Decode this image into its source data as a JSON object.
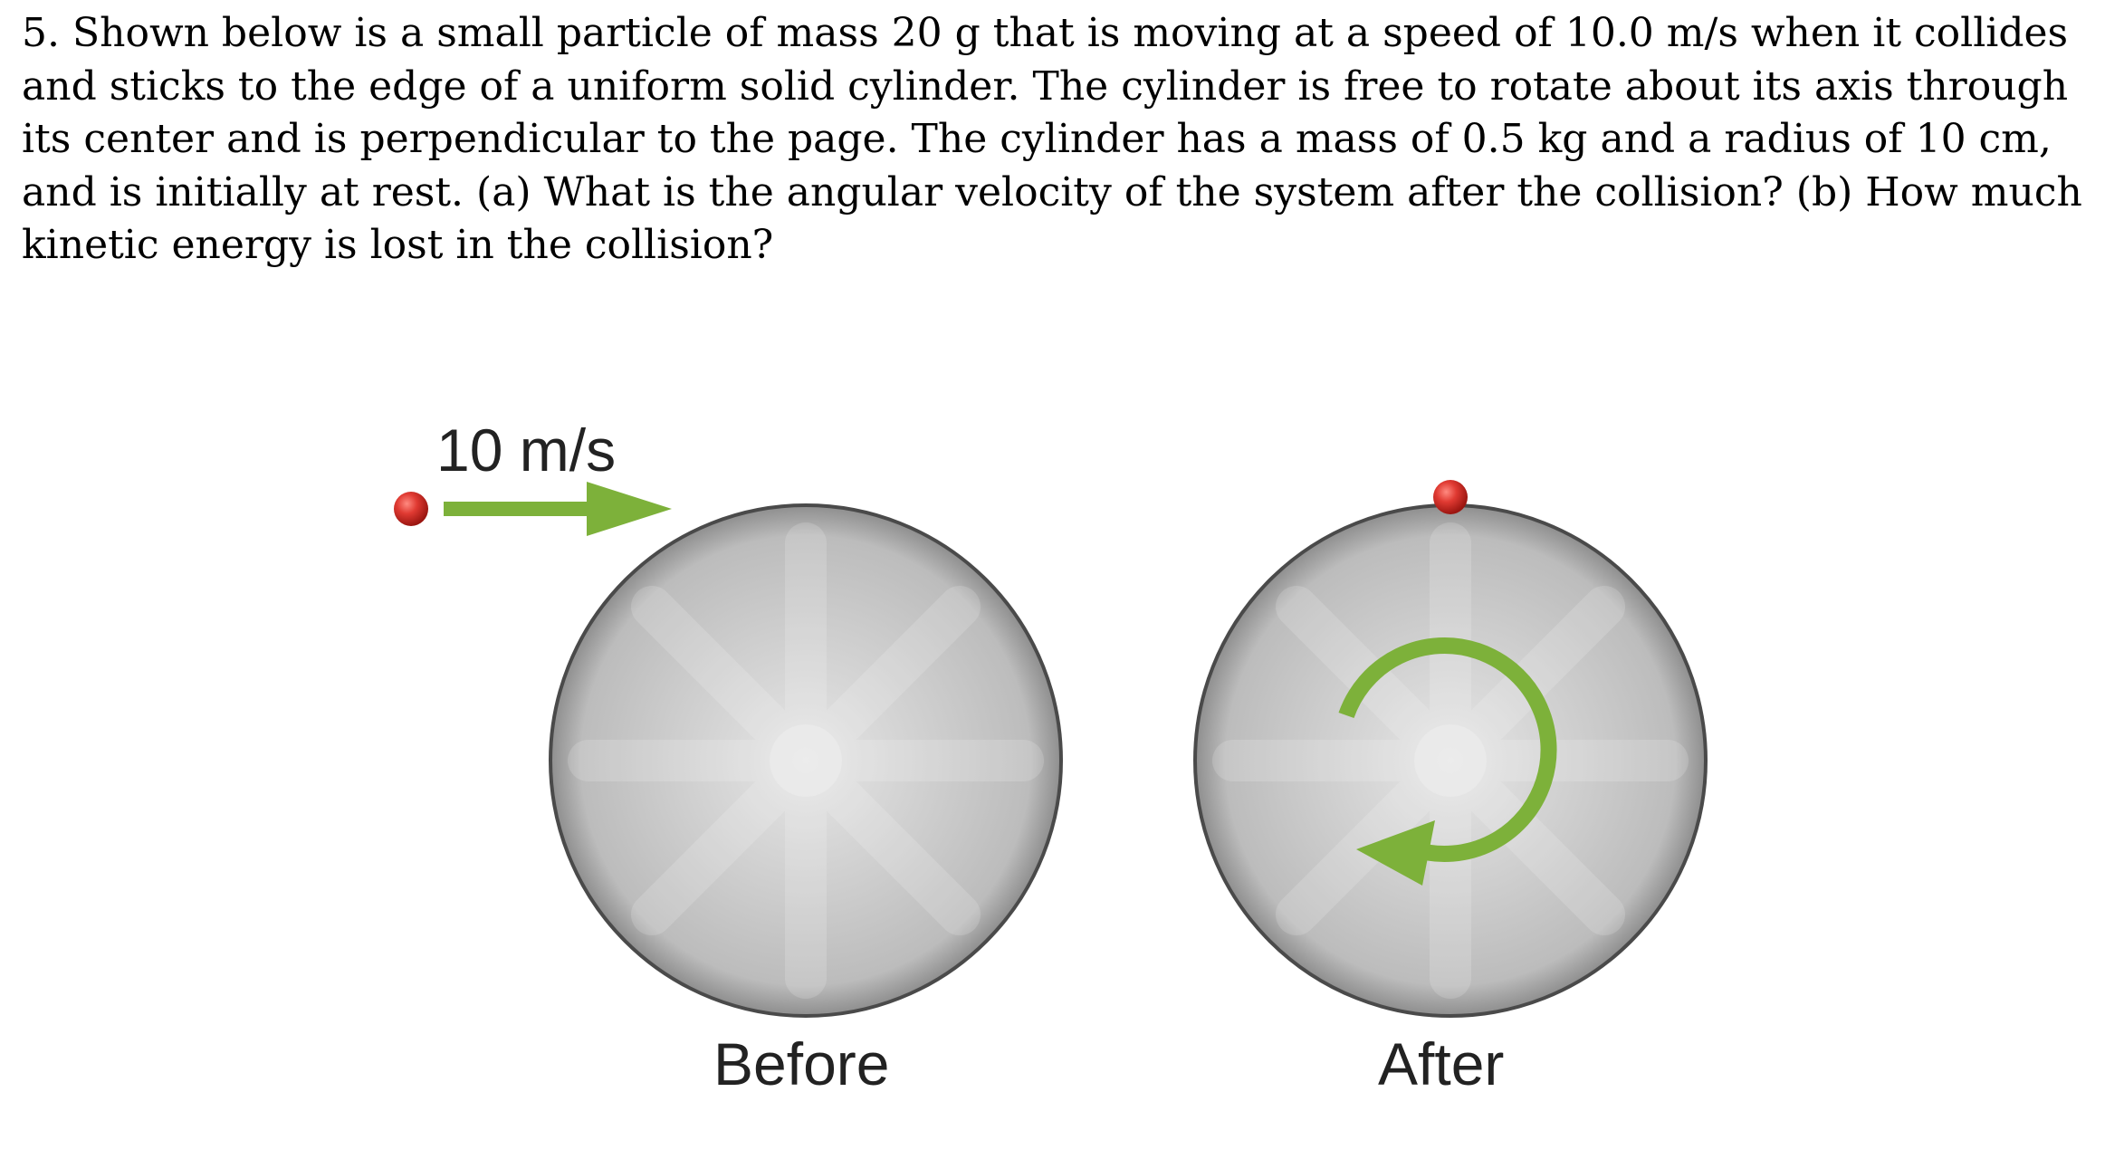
{
  "problem": {
    "text": "5. Shown below is a small particle of mass 20 g that is moving at a speed of 10.0 m/s when it collides and sticks to the edge of a uniform solid cylinder. The cylinder is free to rotate about its axis through its center and is perpendicular to the page. The cylinder has a mass of 0.5 kg and a radius of 10 cm, and is initially at rest. (a) What is the angular velocity of the system after the collision? (b) How much kinetic energy is lost in the collision?"
  },
  "figure": {
    "speed_label": "10 m/s",
    "before_label": "Before",
    "after_label": "After",
    "icons": {
      "particle": "red-sphere",
      "velocity": "right-arrow",
      "rotation": "counterclockwise-arrow"
    },
    "colors": {
      "particle": "#d42a2a",
      "arrow": "#7db13a",
      "disk_edge": "#4a4a4a"
    }
  }
}
